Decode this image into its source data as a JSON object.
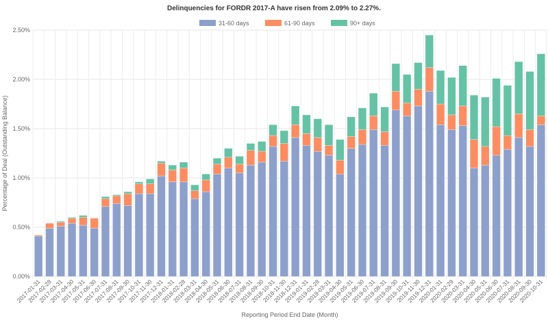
{
  "chart_data": {
    "type": "bar",
    "stacked": true,
    "title": "Delinquencies for FORDR 2017-A have risen from 2.09% to 2.27%.",
    "xlabel": "Reporting Period End Date (Month)",
    "ylabel": "Percentage of Deal (Outstanding Balance)",
    "ylim": [
      0,
      2.5
    ],
    "yticks": [
      "0.00%",
      "0.50%",
      "1.00%",
      "1.50%",
      "2.00%",
      "2.50%"
    ],
    "grid": true,
    "legend_position": "top",
    "categories": [
      "2017-01-31",
      "2017-02-28",
      "2017-03-31",
      "2017-04-30",
      "2017-05-31",
      "2017-06-30",
      "2017-07-31",
      "2017-08-31",
      "2017-09-30",
      "2017-10-31",
      "2017-11-30",
      "2017-12-31",
      "2018-01-31",
      "2018-02-28",
      "2018-03-31",
      "2018-04-30",
      "2018-05-31",
      "2018-06-30",
      "2018-07-31",
      "2018-08-31",
      "2018-09-30",
      "2018-10-31",
      "2018-11-30",
      "2018-12-31",
      "2019-01-31",
      "2019-02-28",
      "2019-03-31",
      "2019-04-30",
      "2019-05-31",
      "2019-06-30",
      "2019-07-31",
      "2019-08-31",
      "2019-09-30",
      "2019-10-31",
      "2019-11-30",
      "2019-12-31",
      "2020-01-31",
      "2020-02-29",
      "2020-03-31",
      "2020-04-30",
      "2020-05-31",
      "2020-06-30",
      "2020-07-31",
      "2020-08-31",
      "2020-09-30",
      "2020-10-31"
    ],
    "series": [
      {
        "name": "31-60 days",
        "color": "#8DA0CB",
        "values": [
          0.41,
          0.49,
          0.51,
          0.54,
          0.52,
          0.49,
          0.71,
          0.74,
          0.72,
          0.84,
          0.84,
          1.02,
          0.96,
          0.96,
          0.79,
          0.86,
          1.04,
          1.1,
          1.05,
          1.13,
          1.16,
          1.32,
          1.17,
          1.41,
          1.33,
          1.27,
          1.23,
          1.04,
          1.3,
          1.34,
          1.49,
          1.33,
          1.69,
          1.63,
          1.73,
          1.88,
          1.54,
          1.49,
          1.53,
          1.1,
          1.13,
          1.23,
          1.29,
          1.41,
          1.32,
          1.54
        ]
      },
      {
        "name": "61-90 days",
        "color": "#FC8D62",
        "values": [
          0.01,
          0.05,
          0.04,
          0.05,
          0.08,
          0.1,
          0.08,
          0.08,
          0.12,
          0.1,
          0.1,
          0.13,
          0.12,
          0.14,
          0.08,
          0.12,
          0.1,
          0.11,
          0.09,
          0.15,
          0.11,
          0.11,
          0.18,
          0.13,
          0.12,
          0.14,
          0.1,
          0.14,
          0.12,
          0.15,
          0.14,
          0.14,
          0.19,
          0.13,
          0.17,
          0.24,
          0.21,
          0.15,
          0.2,
          0.29,
          0.19,
          0.29,
          0.14,
          0.24,
          0.17,
          0.09
        ]
      },
      {
        "name": "90+ days",
        "color": "#66C2A5",
        "values": [
          0,
          0,
          0.01,
          0.01,
          0.02,
          0.005,
          0.02,
          0.01,
          0.02,
          0.02,
          0.05,
          0.02,
          0.05,
          0.06,
          0.06,
          0.06,
          0.06,
          0.09,
          0.08,
          0.07,
          0.1,
          0.11,
          0.13,
          0.19,
          0.19,
          0.19,
          0.21,
          0.21,
          0.2,
          0.22,
          0.23,
          0.25,
          0.28,
          0.29,
          0.27,
          0.33,
          0.34,
          0.38,
          0.41,
          0.45,
          0.5,
          0.49,
          0.51,
          0.53,
          0.59,
          0.63
        ]
      }
    ]
  }
}
